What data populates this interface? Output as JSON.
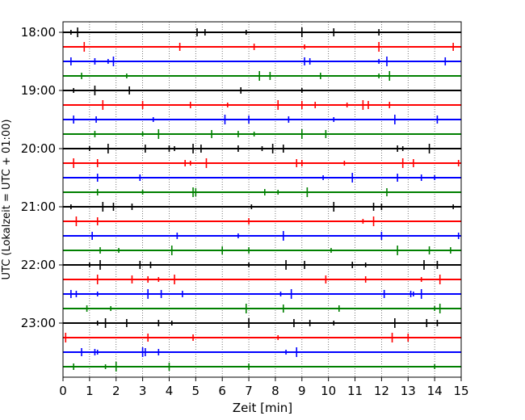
{
  "chart_data": {
    "type": "line",
    "xlabel": "Zeit  [min]",
    "ylabel": "UTC (Lokalzeit = UTC + 01:00)",
    "xlim": [
      0,
      15
    ],
    "x_ticks": [
      "0",
      "1",
      "2",
      "3",
      "4",
      "5",
      "6",
      "7",
      "8",
      "9",
      "10",
      "11",
      "12",
      "13",
      "14",
      "15"
    ],
    "y_tick_labels": [
      "18:00",
      "19:00",
      "20:00",
      "21:00",
      "22:00",
      "23:00"
    ],
    "grid": "vertical dotted lines at each minute",
    "traces_per_hour": 4,
    "trace_colors": [
      "#000000",
      "#ff0000",
      "#0000ff",
      "#008000"
    ],
    "traces": [
      {
        "start": "18:00",
        "color": "#000000",
        "spikes": [
          0.3,
          0.55,
          5.05,
          5.35,
          6.9,
          9.0,
          10.2,
          11.9
        ]
      },
      {
        "start": "18:15",
        "color": "#ff0000",
        "spikes": [
          0.8,
          4.4,
          7.2,
          9.1,
          11.9,
          14.7
        ]
      },
      {
        "start": "18:30",
        "color": "#0000ff",
        "spikes": [
          0.3,
          1.2,
          1.7,
          1.9,
          9.1,
          9.3,
          11.9,
          12.2,
          14.4
        ]
      },
      {
        "start": "18:45",
        "color": "#008000",
        "spikes": [
          0.7,
          2.4,
          7.4,
          7.8,
          9.7,
          11.9,
          12.3
        ]
      },
      {
        "start": "19:00",
        "color": "#000000",
        "spikes": [
          0.4,
          1.2,
          2.5,
          6.7,
          9.0
        ]
      },
      {
        "start": "19:15",
        "color": "#ff0000",
        "spikes": [
          1.5,
          3.0,
          4.8,
          6.2,
          8.1,
          9.0,
          9.5,
          10.7,
          11.3,
          11.5,
          12.3
        ]
      },
      {
        "start": "19:30",
        "color": "#0000ff",
        "spikes": [
          0.4,
          1.25,
          3.4,
          6.1,
          7.0,
          8.5,
          10.2,
          12.5,
          14.1
        ]
      },
      {
        "start": "19:45",
        "color": "#008000",
        "spikes": [
          1.2,
          3.0,
          3.6,
          5.6,
          6.6,
          7.2,
          9.0,
          9.9
        ]
      },
      {
        "start": "20:00",
        "color": "#000000",
        "spikes": [
          1.0,
          1.7,
          3.1,
          4.0,
          4.2,
          4.9,
          5.2,
          6.6,
          7.5,
          7.9,
          8.3,
          12.6,
          12.8,
          13.8
        ]
      },
      {
        "start": "20:15",
        "color": "#ff0000",
        "spikes": [
          0.4,
          1.3,
          4.6,
          4.8,
          5.4,
          8.8,
          9.0,
          10.6,
          12.8,
          13.2,
          14.9
        ]
      },
      {
        "start": "20:30",
        "color": "#0000ff",
        "spikes": [
          1.3,
          2.9,
          9.8,
          10.9,
          12.6,
          13.5,
          14.0
        ]
      },
      {
        "start": "20:45",
        "color": "#008000",
        "spikes": [
          1.3,
          3.0,
          4.9,
          5.0,
          7.6,
          8.1,
          9.2,
          12.2
        ]
      },
      {
        "start": "21:00",
        "color": "#000000",
        "spikes": [
          0.3,
          1.5,
          1.9,
          2.6,
          7.1,
          10.2,
          11.7,
          12.0,
          14.7
        ]
      },
      {
        "start": "21:15",
        "color": "#ff0000",
        "spikes": [
          0.5,
          1.3,
          7.0,
          11.3,
          11.7
        ]
      },
      {
        "start": "21:30",
        "color": "#0000ff",
        "spikes": [
          1.1,
          4.3,
          6.6,
          8.3,
          12.0,
          14.9
        ]
      },
      {
        "start": "21:45",
        "color": "#008000",
        "spikes": [
          1.4,
          2.1,
          4.1,
          6.0,
          7.0,
          10.1,
          12.6,
          13.8,
          14.6
        ]
      },
      {
        "start": "22:00",
        "color": "#000000",
        "spikes": [
          1.0,
          1.4,
          2.9,
          3.3,
          7.0,
          8.4,
          9.1,
          10.9,
          11.4,
          13.6,
          14.1
        ]
      },
      {
        "start": "22:15",
        "color": "#ff0000",
        "spikes": [
          1.3,
          2.6,
          3.2,
          3.6,
          4.2,
          9.9,
          11.4,
          13.5,
          14.2
        ]
      },
      {
        "start": "22:30",
        "color": "#0000ff",
        "spikes": [
          0.3,
          0.5,
          1.3,
          3.2,
          3.7,
          4.5,
          8.2,
          8.6,
          12.1,
          13.1,
          13.2,
          13.5
        ]
      },
      {
        "start": "22:45",
        "color": "#008000",
        "spikes": [
          0.9,
          1.8,
          6.9,
          8.3,
          10.4,
          14.0,
          14.2
        ]
      },
      {
        "start": "23:00",
        "color": "#000000",
        "spikes": [
          1.3,
          1.6,
          2.4,
          3.6,
          4.1,
          7.0,
          8.7,
          9.3,
          10.2,
          12.5,
          13.7,
          14.1
        ]
      },
      {
        "start": "23:15",
        "color": "#ff0000",
        "spikes": [
          0.1,
          3.2,
          4.9,
          8.1,
          12.4,
          13.0
        ]
      },
      {
        "start": "23:30",
        "color": "#0000ff",
        "spikes": [
          0.7,
          1.2,
          1.3,
          3.0,
          3.1,
          3.6,
          8.4,
          8.8
        ]
      },
      {
        "start": "23:45",
        "color": "#008000",
        "spikes": [
          0.4,
          1.6,
          2.0,
          4.0,
          7.0,
          14.0
        ]
      }
    ]
  }
}
